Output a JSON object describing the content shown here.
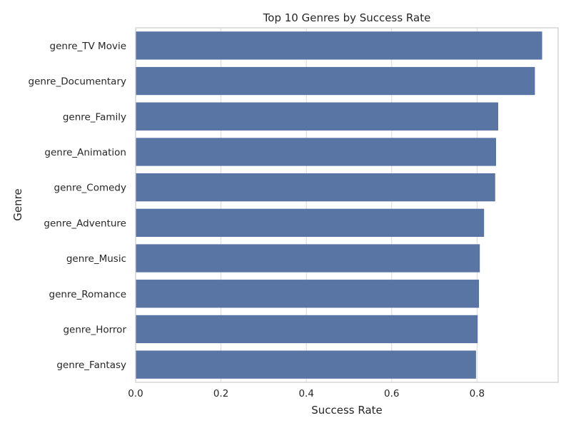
{
  "chart_data": {
    "type": "bar",
    "orientation": "horizontal",
    "title": "Top 10 Genres by Success Rate",
    "xlabel": "Success Rate",
    "ylabel": "Genre",
    "categories": [
      "genre_TV Movie",
      "genre_Documentary",
      "genre_Family",
      "genre_Animation",
      "genre_Comedy",
      "genre_Adventure",
      "genre_Music",
      "genre_Romance",
      "genre_Horror",
      "genre_Fantasy"
    ],
    "values": [
      0.952,
      0.935,
      0.849,
      0.844,
      0.842,
      0.816,
      0.806,
      0.804,
      0.801,
      0.797
    ],
    "xlim": [
      0,
      0.99
    ],
    "xticks": [
      0.0,
      0.2,
      0.4,
      0.6,
      0.8
    ],
    "xtick_labels": [
      "0.0",
      "0.2",
      "0.4",
      "0.6",
      "0.8"
    ],
    "grid": "vertical",
    "bar_color": "#5975a4",
    "grid_color": "#d9d9d9",
    "frame_color": "#cccccc"
  }
}
